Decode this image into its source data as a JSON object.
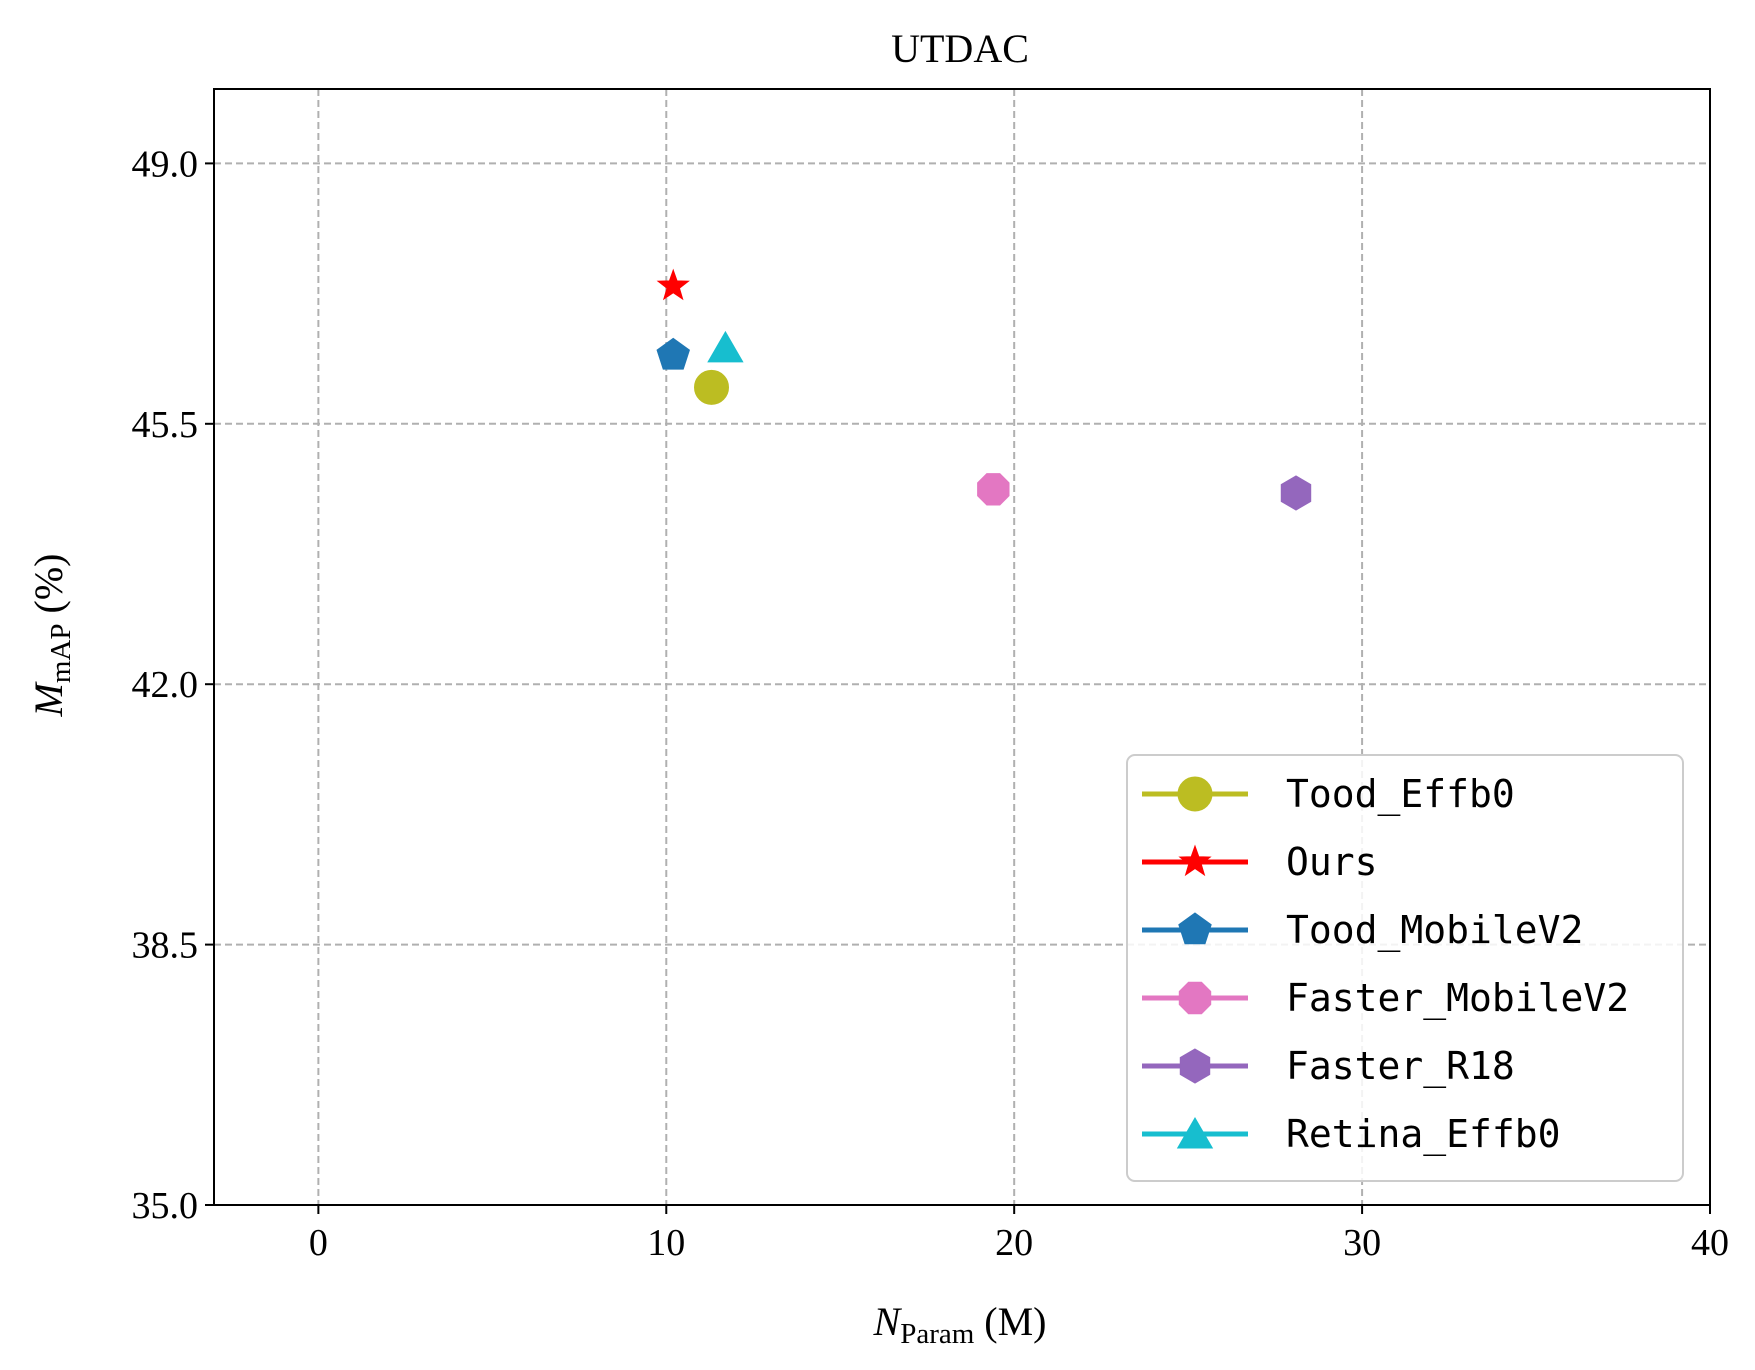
{
  "chart_data": {
    "type": "scatter",
    "title": "UTDAC",
    "xlabel": {
      "main": "N",
      "sub": "Param",
      "suffix": " (M)"
    },
    "ylabel": {
      "main": "M",
      "sub": "mAP",
      "suffix": " (%)"
    },
    "xlim": [
      -3,
      40
    ],
    "ylim": [
      35.0,
      50.0
    ],
    "xticks": [
      0,
      10,
      20,
      30,
      40
    ],
    "xtick_labels": [
      "0",
      "10",
      "20",
      "30",
      "40"
    ],
    "yticks": [
      35.0,
      38.5,
      42.0,
      45.5,
      49.0
    ],
    "ytick_labels": [
      "35.0",
      "38.5",
      "42.0",
      "45.5",
      "49.0"
    ],
    "grid": true,
    "legend_position": "lower-right",
    "series": [
      {
        "name": "Tood_Effb0",
        "x": 11.3,
        "y": 45.99,
        "marker": "circle",
        "color": "#bcbd22"
      },
      {
        "name": "Ours",
        "x": 10.2,
        "y": 47.35,
        "marker": "star",
        "color": "#ff0000"
      },
      {
        "name": "Tood_MobileV2",
        "x": 10.2,
        "y": 46.42,
        "marker": "pentagon",
        "color": "#1f77b4"
      },
      {
        "name": "Faster_MobileV2",
        "x": 19.4,
        "y": 44.62,
        "marker": "octagon",
        "color": "#e377c2"
      },
      {
        "name": "Faster_R18",
        "x": 28.1,
        "y": 44.57,
        "marker": "hexagon",
        "color": "#9467bd"
      },
      {
        "name": "Retina_Effb0",
        "x": 11.7,
        "y": 46.52,
        "marker": "triangle",
        "color": "#17becf"
      }
    ]
  }
}
